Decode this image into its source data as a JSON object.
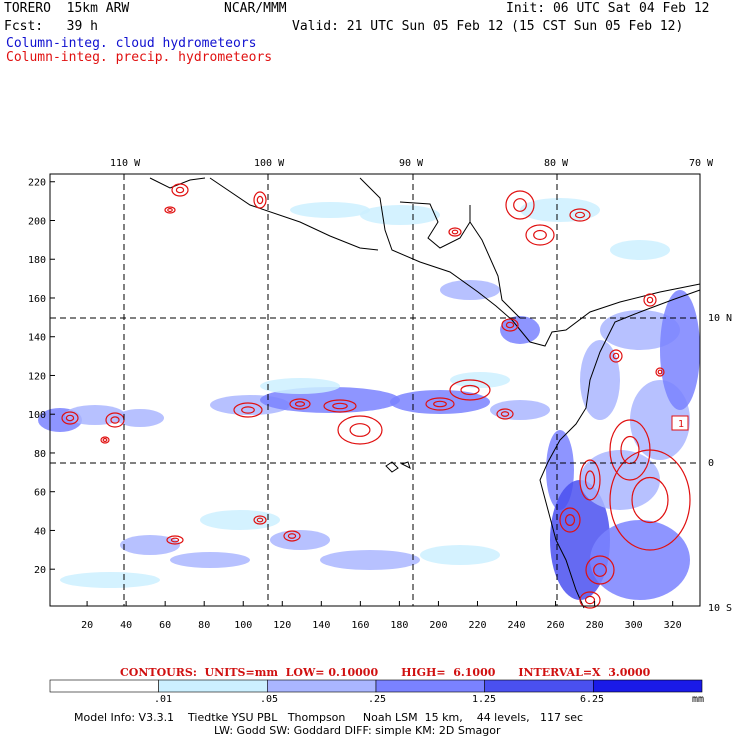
{
  "header": {
    "model": "TORERO  15km ARW",
    "org": "NCAR/MMM",
    "init": "Init: 06 UTC Sat 04 Feb 12",
    "fcst": "Fcst:   39 h",
    "valid": "Valid: 21 UTC Sun 05 Feb 12 (15 CST Sun 05 Feb 12)",
    "field1": "Column-integ. cloud hydrometeors",
    "field2": "Column-integ. precip. hydrometeors"
  },
  "colors": {
    "cloud_text": "#1010d0",
    "precip": "#e01010",
    "cbar": [
      "#ffffff",
      "#ccf0ff",
      "#aab6ff",
      "#7a82ff",
      "#4a50f0",
      "#1a1ae8"
    ]
  },
  "axes": {
    "top_lon": [
      "110 W",
      "100 W",
      "90 W",
      "80 W",
      "70 W"
    ],
    "right_lat": [
      "10 N",
      "0",
      "10 S"
    ],
    "left_ticks": [
      "220",
      "200",
      "180",
      "160",
      "140",
      "120",
      "100",
      "80",
      "60",
      "40",
      "20"
    ],
    "bottom_ticks": [
      "20",
      "40",
      "60",
      "80",
      "100",
      "120",
      "140",
      "160",
      "180",
      "200",
      "220",
      "240",
      "260",
      "280",
      "300",
      "320"
    ],
    "x_range": [
      1,
      334
    ],
    "y_range": [
      1,
      224
    ]
  },
  "contours_label": "CONTOURS:  UNITS=mm  LOW= 0.10000      HIGH=  6.1000      INTERVAL=X  3.0000",
  "colorbar": {
    "labels": [
      ".01",
      ".05",
      ".25",
      "1.25",
      "6.25"
    ],
    "unit": "mm"
  },
  "contour_tag": "1",
  "footer": {
    "line1": "Model Info: V3.3.1    Tiedtke YSU PBL   Thompson     Noah LSM  15 km,    44 levels,   117 sec",
    "line2": "LW: Godd SW: Goddard DIFF: simple KM: 2D Smagor"
  }
}
